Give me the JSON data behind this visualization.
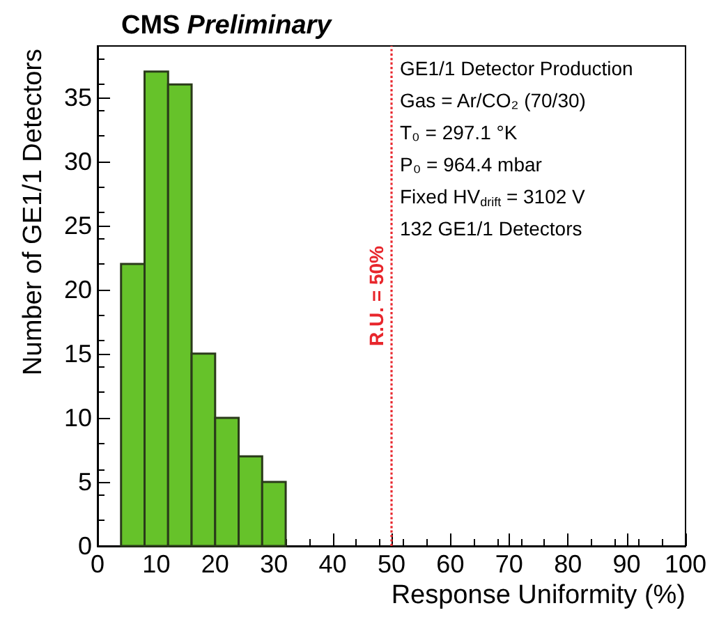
{
  "chart_data": {
    "type": "histogram",
    "title": "CMS Preliminary",
    "xlabel": "Response Uniformity (%)",
    "ylabel": "Number of GE1/1 Detectors",
    "bins": [
      4,
      8,
      12,
      16,
      20,
      24,
      28,
      32
    ],
    "values": [
      22,
      37,
      36,
      15,
      10,
      7,
      5
    ],
    "color": "#66c22a",
    "xlim": [
      0,
      100
    ],
    "xticks": [
      0,
      10,
      20,
      30,
      40,
      50,
      60,
      70,
      80,
      90,
      100
    ],
    "ylim": [
      0,
      39
    ],
    "yticks": [
      0,
      5,
      10,
      15,
      20,
      25,
      30,
      35
    ],
    "grid": false,
    "ref_lines": [
      {
        "axis": "x",
        "value": 50,
        "label": "R.U. = 50%",
        "color": "#e8262c",
        "line_style": "dotted"
      }
    ],
    "annotations": [
      "GE1/1 Detector Production",
      "Gas = Ar/CO₂ (70/30)",
      "T₀ = 297.1 °K",
      "P₀ = 964.4 mbar",
      "Fixed HV$_{drift}$ = 3102 V",
      "132 GE1/1 Detectors"
    ]
  }
}
